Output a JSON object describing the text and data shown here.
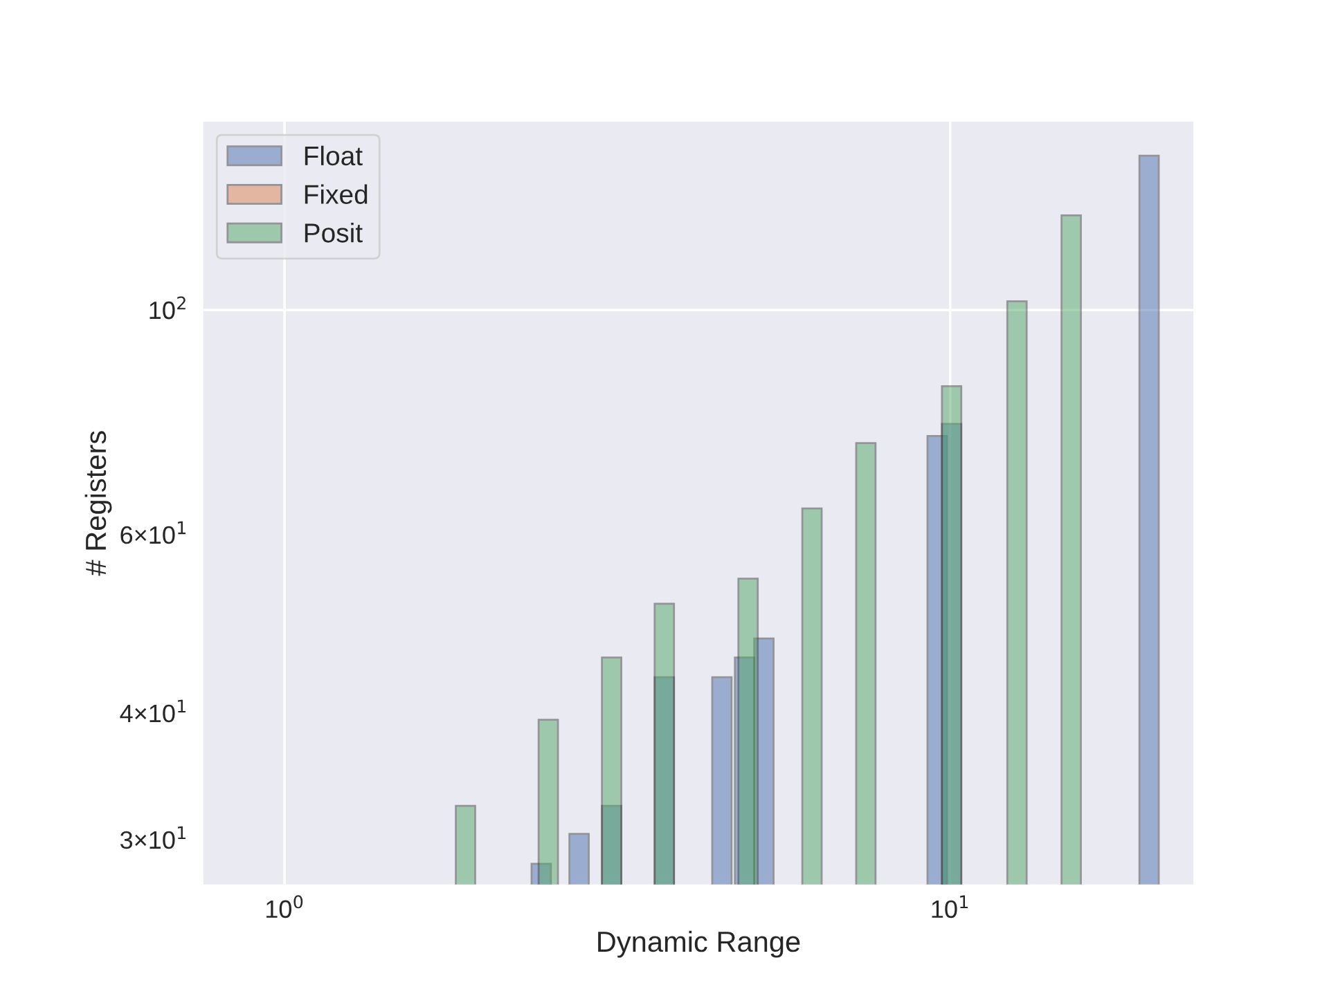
{
  "chart_data": {
    "type": "bar",
    "xlabel": "Dynamic Range",
    "ylabel": "# Registers",
    "log": "xy",
    "grid": true,
    "legend": "top left",
    "xlim": [
      0.755,
      23.2
    ],
    "ylim": [
      27.1,
      153.5
    ],
    "xticks": [
      {
        "value": 1,
        "label": "10$^{0}$"
      },
      {
        "value": 10,
        "label": "10$^{1}$"
      }
    ],
    "yticks": [
      {
        "value": 30,
        "label": "3×10$^{1}$"
      },
      {
        "value": 40,
        "label": "4×10$^{1}$"
      },
      {
        "value": 60,
        "label": "6×10$^{1}$"
      },
      {
        "value": 100,
        "label": "10$^{2}$"
      }
    ],
    "series": [
      {
        "name": "Float",
        "color": "#4c72b0",
        "x": [
          2.43,
          2.77,
          3.1,
          3.72,
          4.54,
          4.91,
          5.25,
          9.56,
          10.05,
          19.9
        ],
        "values": [
          28.4,
          30.4,
          32.4,
          43.4,
          43.4,
          45.4,
          47.4,
          75.1,
          77.2,
          142
        ]
      },
      {
        "name": "Fixed",
        "color": "#dd8452"
      },
      {
        "name": "Posit",
        "color": "#55a868",
        "x": [
          1.87,
          2.49,
          3.1,
          3.72,
          4.97,
          6.2,
          7.47,
          10.05,
          12.6,
          15.2
        ],
        "values": [
          32.4,
          39.4,
          45.4,
          51.3,
          54.3,
          63.7,
          73.9,
          84.1,
          102,
          124
        ]
      }
    ]
  }
}
